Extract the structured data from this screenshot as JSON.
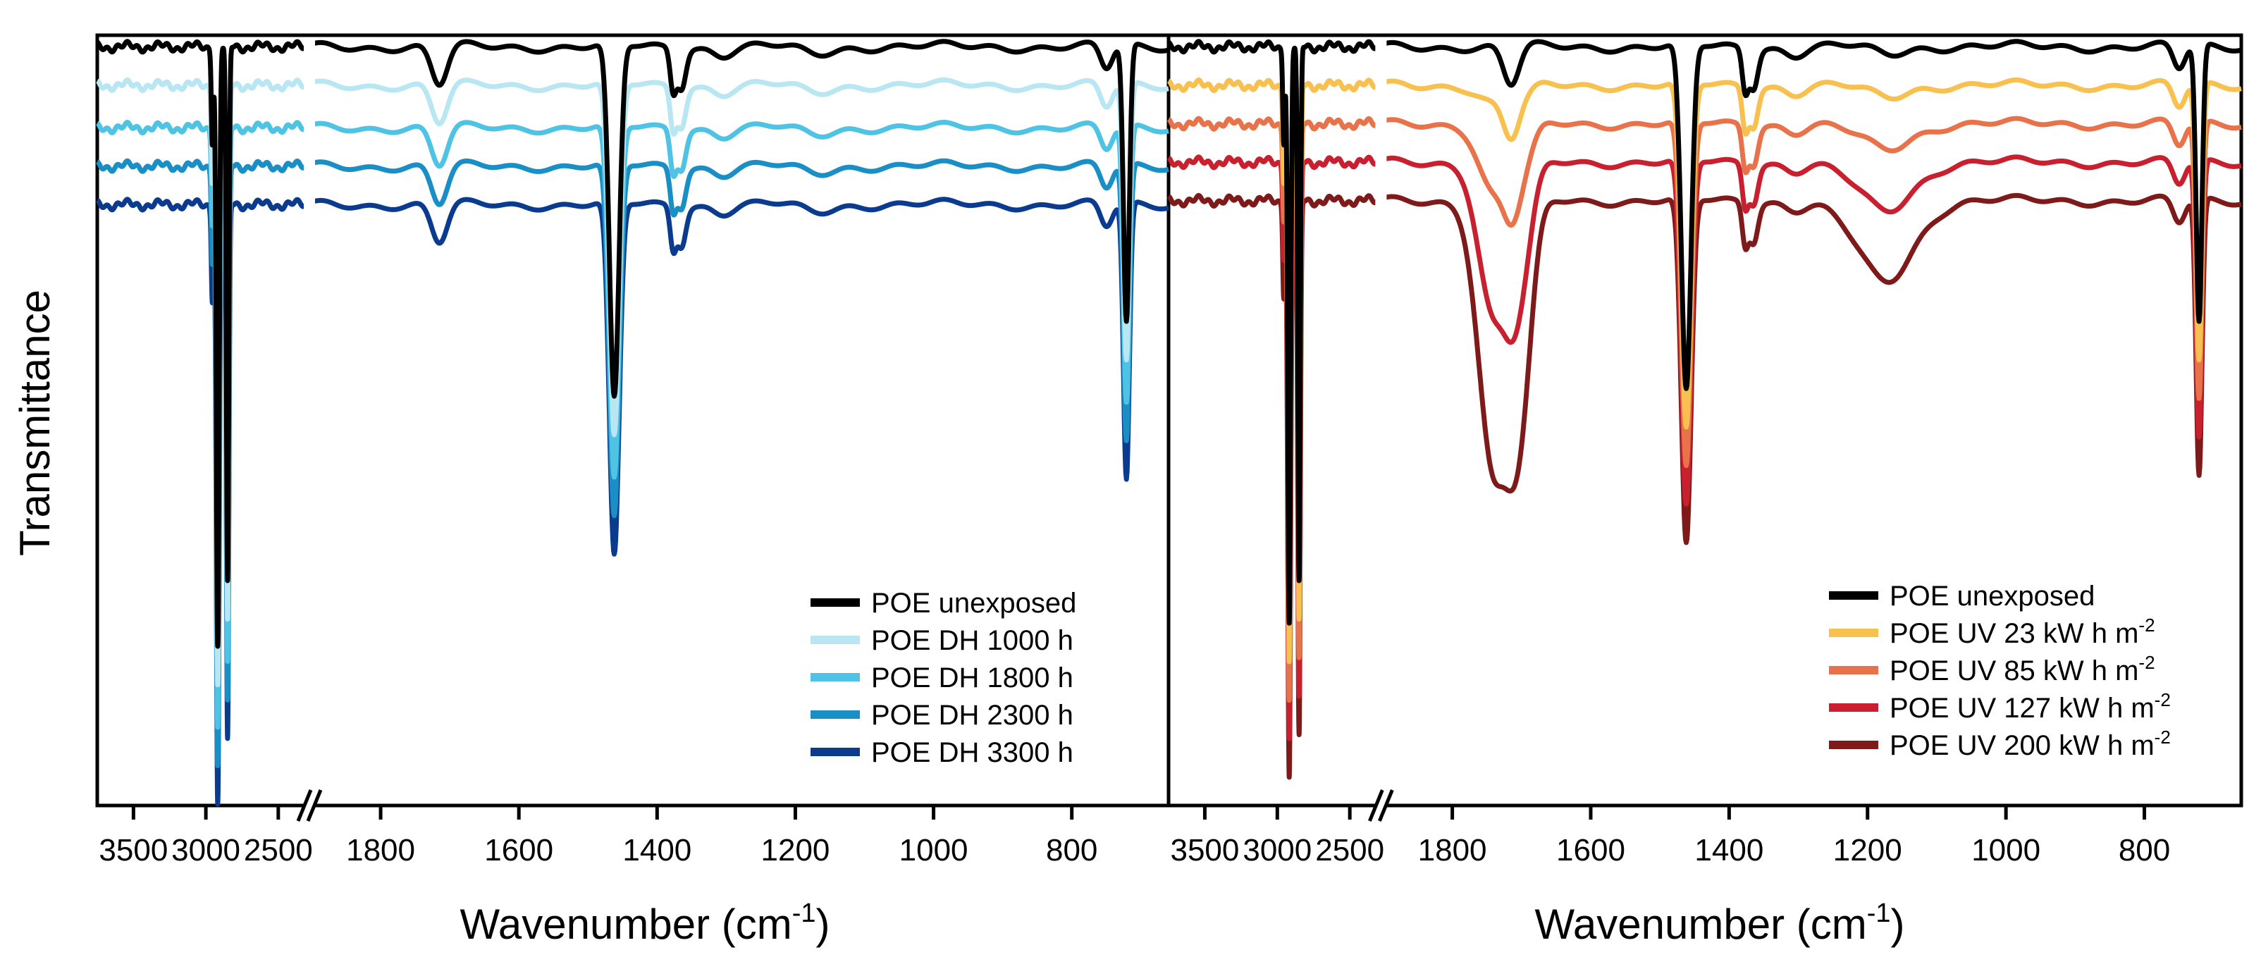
{
  "figure": {
    "ylabel": "Transmittance",
    "xlabel_left": "Wavenumber (cm",
    "xlabel_right": "Wavenumber (cm",
    "xlabel_sup": "-1",
    "xlabel_close": ")"
  },
  "chart_data": [
    {
      "type": "line",
      "panel": "left",
      "title": "",
      "xlabel": "Wavenumber (cm-1)",
      "ylabel": "Transmittance",
      "x_axis": {
        "broken": true,
        "segment_high": {
          "range": [
            3750,
            2300
          ],
          "ticks": [
            3500,
            3000,
            2500
          ]
        },
        "segment_low": {
          "range": [
            1900,
            660
          ],
          "ticks": [
            1800,
            1600,
            1400,
            1200,
            1000,
            800
          ]
        }
      },
      "ylim": [
        0,
        1
      ],
      "legend_position": "bottom-right",
      "series": [
        {
          "name": "POE unexposed",
          "color": "#000000",
          "offset": 0.985
        },
        {
          "name": "POE DH 1000 h",
          "color": "#b8e6f2",
          "offset": 0.935
        },
        {
          "name": "POE DH 1800 h",
          "color": "#4fc3e3",
          "offset": 0.88
        },
        {
          "name": "POE DH 2300 h",
          "color": "#1a8fc6",
          "offset": 0.83
        },
        {
          "name": "POE DH 3300 h",
          "color": "#0b3b8e",
          "offset": 0.78
        }
      ],
      "bands": [
        {
          "center": 2918,
          "width": 14,
          "depth": 0.78
        },
        {
          "center": 2850,
          "width": 12,
          "depth": 0.7
        },
        {
          "center": 2955,
          "width": 10,
          "depth": 0.12
        },
        {
          "center": 1715,
          "width": 16,
          "depth": 0.05
        },
        {
          "center": 1462,
          "width": 10,
          "depth": 0.46
        },
        {
          "center": 1377,
          "width": 6,
          "depth": 0.05
        },
        {
          "center": 1365,
          "width": 9,
          "depth": 0.05
        },
        {
          "center": 1305,
          "width": 20,
          "depth": 0.01
        },
        {
          "center": 1170,
          "width": 30,
          "depth": 0.01
        },
        {
          "center": 721,
          "width": 6,
          "depth": 0.36
        },
        {
          "center": 750,
          "width": 12,
          "depth": 0.03
        }
      ]
    },
    {
      "type": "line",
      "panel": "right",
      "title": "",
      "xlabel": "Wavenumber (cm-1)",
      "ylabel": "Transmittance",
      "x_axis": {
        "broken": true,
        "segment_high": {
          "range": [
            3750,
            2300
          ],
          "ticks": [
            3500,
            3000,
            2500
          ]
        },
        "segment_low": {
          "range": [
            1900,
            660
          ],
          "ticks": [
            1800,
            1600,
            1400,
            1200,
            1000,
            800
          ]
        }
      },
      "ylim": [
        0,
        1
      ],
      "legend_position": "bottom-right",
      "series": [
        {
          "name": "POE unexposed",
          "color": "#000000",
          "offset": 0.985
        },
        {
          "name": "POE UV 23 kW h m",
          "sup": "-2",
          "color": "#f7c04f",
          "offset": 0.935
        },
        {
          "name": "POE UV 85 kW h m",
          "sup": "-2",
          "color": "#e8734a",
          "offset": 0.885
        },
        {
          "name": "POE UV 127 kW h m",
          "sup": "-2",
          "color": "#c9202f",
          "offset": 0.835
        },
        {
          "name": "POE UV 200 kW h m",
          "sup": "-2",
          "color": "#7e1a1a",
          "offset": 0.785
        }
      ],
      "bands": [
        {
          "center": 2918,
          "width": 14,
          "depth": 0.75
        },
        {
          "center": 2850,
          "width": 12,
          "depth": 0.7
        },
        {
          "center": 2955,
          "width": 10,
          "depth": 0.12
        },
        {
          "center": 1715,
          "width": 16,
          "depth": 0.05
        },
        {
          "center": 1462,
          "width": 10,
          "depth": 0.45
        },
        {
          "center": 1377,
          "width": 6,
          "depth": 0.05
        },
        {
          "center": 1365,
          "width": 9,
          "depth": 0.05
        },
        {
          "center": 1305,
          "width": 20,
          "depth": 0.01
        },
        {
          "center": 1170,
          "width": 30,
          "depth": 0.01
        },
        {
          "center": 721,
          "width": 6,
          "depth": 0.36
        },
        {
          "center": 750,
          "width": 12,
          "depth": 0.03
        }
      ],
      "degradation_bands": [
        {
          "center": 1740,
          "width": 30,
          "depth_per_step": 0.022
        },
        {
          "center": 1700,
          "width": 22,
          "depth_per_step": 0.015
        },
        {
          "center": 1175,
          "width": 60,
          "depth_per_step": 0.006
        }
      ]
    }
  ]
}
